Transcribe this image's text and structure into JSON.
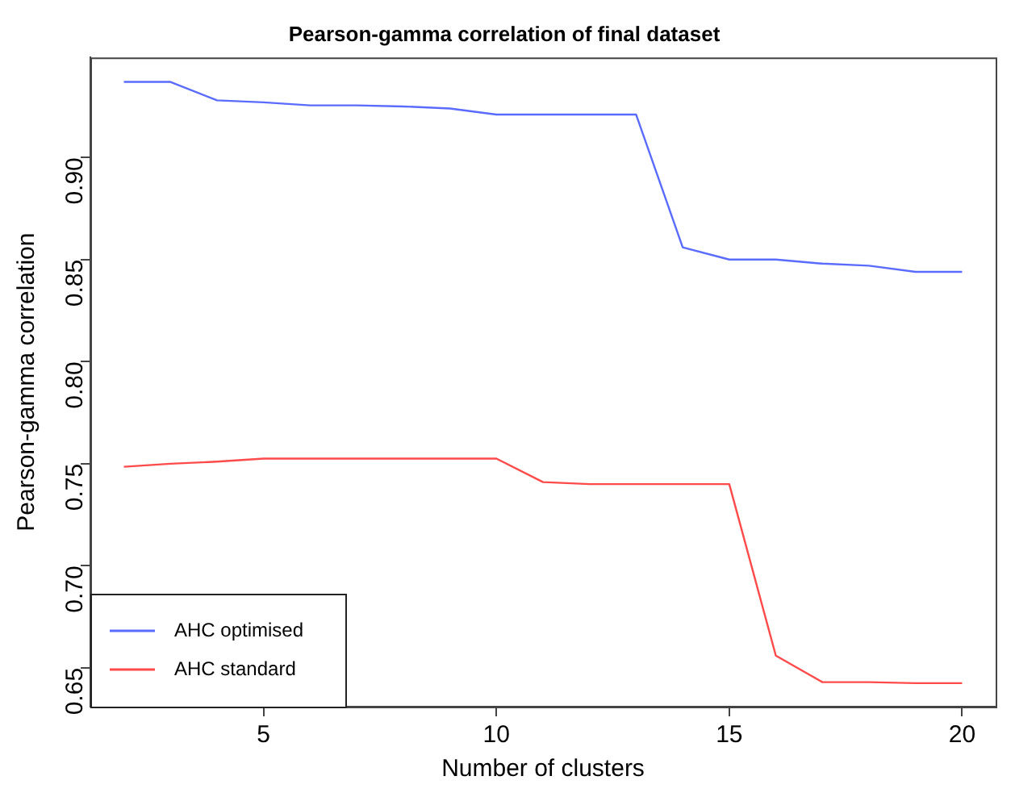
{
  "chart_data": {
    "type": "line",
    "title": "Pearson-gamma correlation of final dataset",
    "xlabel": "Number of clusters",
    "ylabel": "Pearson-gamma correlation",
    "x": [
      2,
      3,
      4,
      5,
      6,
      7,
      8,
      9,
      10,
      11,
      12,
      13,
      14,
      15,
      16,
      17,
      18,
      19,
      20
    ],
    "series": [
      {
        "name": "AHC optimised",
        "color": "#5a6bff",
        "values": [
          0.937,
          0.937,
          0.928,
          0.927,
          0.9255,
          0.9255,
          0.925,
          0.924,
          0.921,
          0.921,
          0.921,
          0.921,
          0.856,
          0.85,
          0.85,
          0.848,
          0.847,
          0.844,
          0.844
        ]
      },
      {
        "name": "AHC standard",
        "color": "#ff4a4a",
        "values": [
          0.7485,
          0.75,
          0.751,
          0.7525,
          0.7525,
          0.7525,
          0.7525,
          0.7525,
          0.7525,
          0.741,
          0.74,
          0.74,
          0.74,
          0.74,
          0.656,
          0.643,
          0.643,
          0.6425,
          0.6425
        ]
      }
    ],
    "xlim": [
      1.28,
      20.72
    ],
    "xticks": [
      5,
      10,
      15,
      20
    ],
    "ylim": [
      0.631,
      0.949
    ],
    "yticks": [
      0.65,
      {
        "value": 0.7,
        "label": "0.70"
      },
      0.75,
      {
        "value": 0.8,
        "label": "0.80"
      },
      0.85,
      {
        "value": 0.9,
        "label": "0.90"
      }
    ],
    "grid": false,
    "legend": "bottom left",
    "marker": "none",
    "line_style": "solid"
  }
}
